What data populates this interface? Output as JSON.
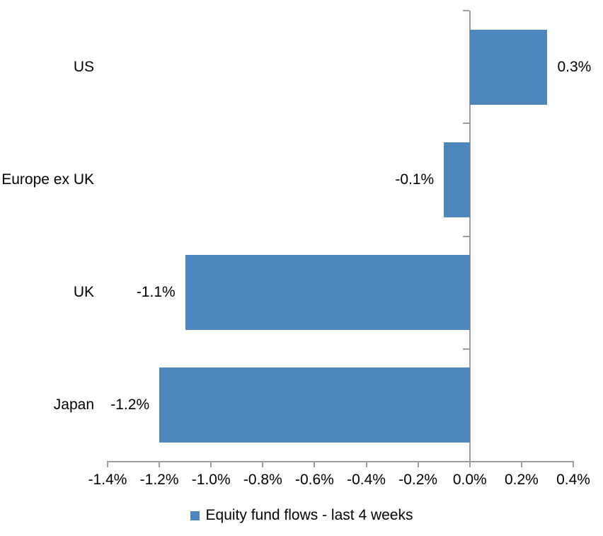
{
  "chart_data": {
    "type": "bar",
    "orientation": "horizontal",
    "title": "",
    "xlabel": "",
    "ylabel": "",
    "grid": false,
    "categories": [
      "US",
      "Europe ex UK",
      "UK",
      "Japan"
    ],
    "series": [
      {
        "name": "Equity fund flows - last 4 weeks",
        "values": [
          0.3,
          -0.1,
          -1.1,
          -1.2
        ],
        "data_labels": [
          "0.3%",
          "-0.1%",
          "-1.1%",
          "-1.2%"
        ]
      }
    ],
    "x_axis": {
      "min": -1.4,
      "max": 0.4,
      "step": 0.2,
      "tick_labels": [
        "-1.4%",
        "-1.2%",
        "-1.0%",
        "-0.8%",
        "-0.6%",
        "-0.4%",
        "-0.2%",
        "0.0%",
        "0.2%",
        "0.4%"
      ]
    },
    "legend": {
      "position": "bottom",
      "marker": "square",
      "label": "Equity fund flows - last 4 weeks"
    },
    "colors": {
      "bar": "#4d87be",
      "axis": "#9d9d9d",
      "text": "#000000",
      "background": "#ffffff"
    }
  }
}
